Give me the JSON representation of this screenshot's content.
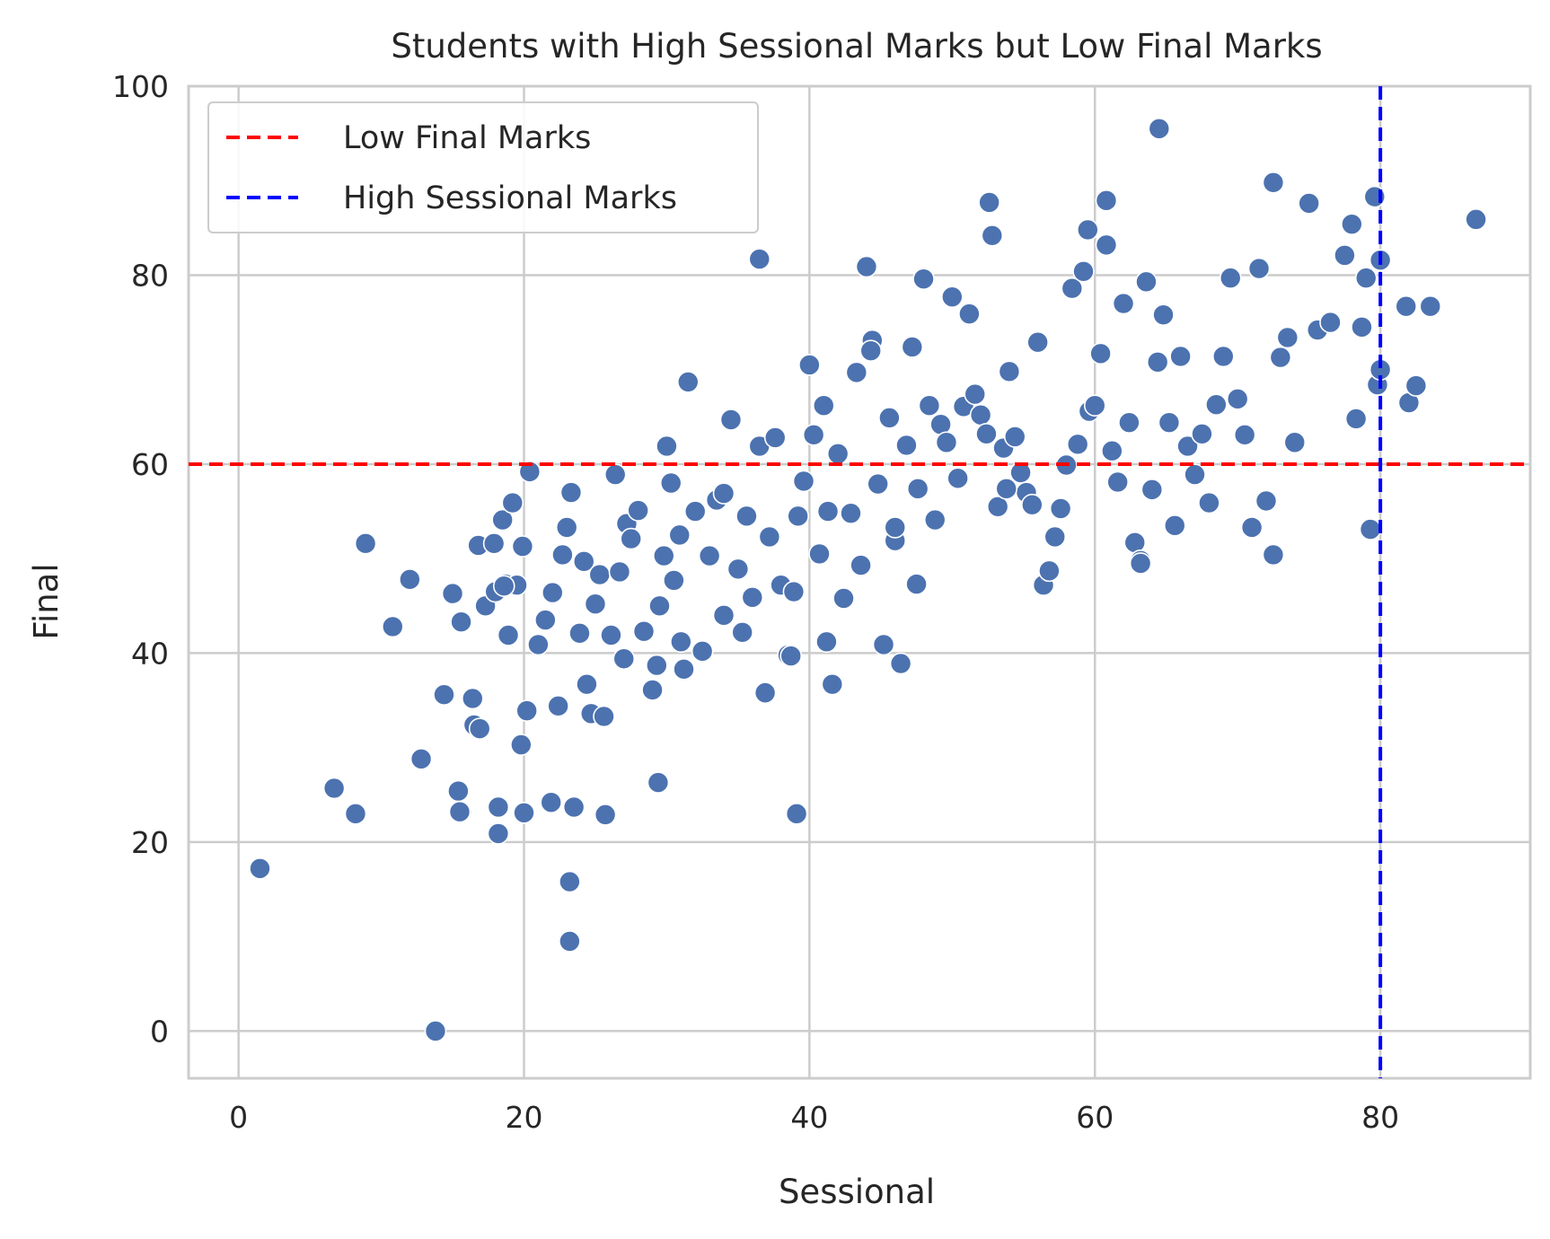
{
  "chart_data": {
    "type": "scatter",
    "title": "Students with High Sessional Marks but Low Final Marks",
    "xlabel": "Sessional",
    "ylabel": "Final",
    "xlim": [
      -3.5,
      90.5
    ],
    "ylim": [
      -5,
      100
    ],
    "xticks": [
      0,
      20,
      40,
      60,
      80
    ],
    "yticks": [
      0,
      20,
      40,
      60,
      80,
      100
    ],
    "grid": true,
    "legend_position": "top-left",
    "colors": {
      "points": "#4c72b0",
      "point_edge": "#ffffff",
      "grid": "#cccccc",
      "spine": "#cccccc",
      "low_final_line": "#ff0000",
      "high_sessional_line": "#0000ff"
    },
    "reference_lines": [
      {
        "name": "Low Final Marks",
        "orientation": "horizontal",
        "value": 60,
        "color": "#ff0000",
        "style": "dashed"
      },
      {
        "name": "High Sessional Marks",
        "orientation": "vertical",
        "value": 80,
        "color": "#0000ff",
        "style": "dashed"
      }
    ],
    "series": [
      {
        "x": [
          1.5,
          13.8,
          8.2,
          6.7,
          8.9,
          10.8,
          12.0,
          12.8,
          14.5,
          15.0,
          15.4,
          15.6,
          15.6,
          16.4,
          16.5,
          16.8,
          16.9,
          17.3,
          17.9,
          18.0,
          18.2,
          18.5,
          18.7,
          18.9,
          19.2,
          19.5,
          19.8,
          20.0,
          20.2,
          20.0,
          20.4,
          21.0,
          21.5,
          22.0,
          22.4,
          22.7,
          23.0,
          23.3,
          23.5,
          23.9,
          24.2,
          24.4,
          24.7,
          25.0,
          25.3,
          25.6,
          26.1,
          26.4,
          26.7,
          27.0,
          27.2,
          27.5,
          28.0,
          28.4,
          29.0,
          29.3,
          29.5,
          29.8,
          30.0,
          30.3,
          30.5,
          30.9,
          31.2,
          31.5,
          32.0,
          32.5,
          33.0,
          33.5,
          34.0,
          34.5,
          35.0,
          35.3,
          35.6,
          36.0,
          36.5,
          36.9,
          37.2,
          37.6,
          38.0,
          38.5,
          38.9,
          39.2,
          39.6,
          40.0,
          40.3,
          40.7,
          41.0,
          41.3,
          41.6,
          42.0,
          42.4,
          42.9,
          43.3,
          43.6,
          44.0,
          44.4,
          44.8,
          45.2,
          45.6,
          46.0,
          46.4,
          46.8,
          47.2,
          47.6,
          48.0,
          48.4,
          48.8,
          49.2,
          49.6,
          50.0,
          50.4,
          50.8,
          51.2,
          51.6,
          52.0,
          52.4,
          52.8,
          53.2,
          53.6,
          54.0,
          54.4,
          54.8,
          55.2,
          55.6,
          56.0,
          56.4,
          56.8,
          57.2,
          57.6,
          58.0,
          58.4,
          58.8,
          59.2,
          59.6,
          60.0,
          60.4,
          60.8,
          61.2,
          61.6,
          62.0,
          62.4,
          62.8,
          63.2,
          63.6,
          64.0,
          64.4,
          64.8,
          65.2,
          65.6,
          66.0,
          66.5,
          67.0,
          67.5,
          68.0,
          68.5,
          69.0,
          69.5,
          70.0,
          70.5,
          71.0,
          71.5,
          72.0,
          72.5,
          73.0,
          73.5,
          74.0,
          75.0,
          75.6,
          76.5,
          77.5,
          78.0,
          78.3,
          78.7,
          79.0,
          79.3,
          79.6,
          79.8,
          80.0,
          80.0,
          81.8,
          82.0,
          82.5,
          83.5,
          86.7,
          64.5,
          52.6,
          60.8,
          72.5,
          36.5,
          44.3,
          47.5,
          63.2,
          59.5,
          53.8,
          38.7,
          34.0,
          23.2,
          23.2,
          39.1,
          46.0,
          41.2,
          31.0,
          29.4,
          25.7,
          21.9,
          19.9,
          18.2,
          15.5,
          18.6,
          14.4
        ],
        "y": [
          17.2,
          0.0,
          23.0,
          25.7,
          51.6,
          42.8,
          47.8,
          28.8,
          35.6,
          46.3,
          25.4,
          23.2,
          43.3,
          35.2,
          32.4,
          51.4,
          32.0,
          45.0,
          51.6,
          46.5,
          20.9,
          54.1,
          47.3,
          41.9,
          55.9,
          47.2,
          30.3,
          23.1,
          33.9,
          23.1,
          59.2,
          40.9,
          43.5,
          46.4,
          34.4,
          50.4,
          53.3,
          57.0,
          23.7,
          42.1,
          49.7,
          36.7,
          33.6,
          45.2,
          48.3,
          33.3,
          41.9,
          58.9,
          48.6,
          39.4,
          53.7,
          52.1,
          55.1,
          42.3,
          36.1,
          38.7,
          45.0,
          50.3,
          61.9,
          58.0,
          47.7,
          52.5,
          38.3,
          68.7,
          55.0,
          40.2,
          50.3,
          56.2,
          44.0,
          64.7,
          48.9,
          42.2,
          54.5,
          45.9,
          61.9,
          35.8,
          52.3,
          62.8,
          47.2,
          39.8,
          46.5,
          54.5,
          58.2,
          70.5,
          63.1,
          50.5,
          66.2,
          55.0,
          36.7,
          61.1,
          45.8,
          54.8,
          69.7,
          49.3,
          80.9,
          73.1,
          57.9,
          40.9,
          64.9,
          51.9,
          38.9,
          62.0,
          72.4,
          57.4,
          79.6,
          66.2,
          54.1,
          64.2,
          62.3,
          77.7,
          58.5,
          66.1,
          75.9,
          67.4,
          65.2,
          63.2,
          84.2,
          55.5,
          61.7,
          69.8,
          62.9,
          59.1,
          57.0,
          55.7,
          72.9,
          47.2,
          48.7,
          52.3,
          55.3,
          59.9,
          78.6,
          62.1,
          80.4,
          65.6,
          66.2,
          71.7,
          83.2,
          61.4,
          58.1,
          77.0,
          64.4,
          51.7,
          49.8,
          79.3,
          57.3,
          70.8,
          75.8,
          64.4,
          53.5,
          71.4,
          61.9,
          58.9,
          63.2,
          55.9,
          66.3,
          71.4,
          79.7,
          66.9,
          63.1,
          53.3,
          80.7,
          56.1,
          50.4,
          71.3,
          73.4,
          62.3,
          87.6,
          74.2,
          75.0,
          82.1,
          85.4,
          64.8,
          74.5,
          79.7,
          53.1,
          88.3,
          68.4,
          81.6,
          70.0,
          76.7,
          66.5,
          68.3,
          76.7,
          85.9,
          95.5,
          87.7,
          87.9,
          89.8,
          81.7,
          72.0,
          47.3,
          49.5,
          84.8,
          57.4,
          39.7,
          56.9,
          9.5,
          15.8,
          23.0,
          53.3,
          41.2,
          41.2,
          26.3,
          22.9,
          24.2,
          51.3,
          23.7,
          23.2,
          47.1,
          35.6
        ]
      }
    ]
  }
}
